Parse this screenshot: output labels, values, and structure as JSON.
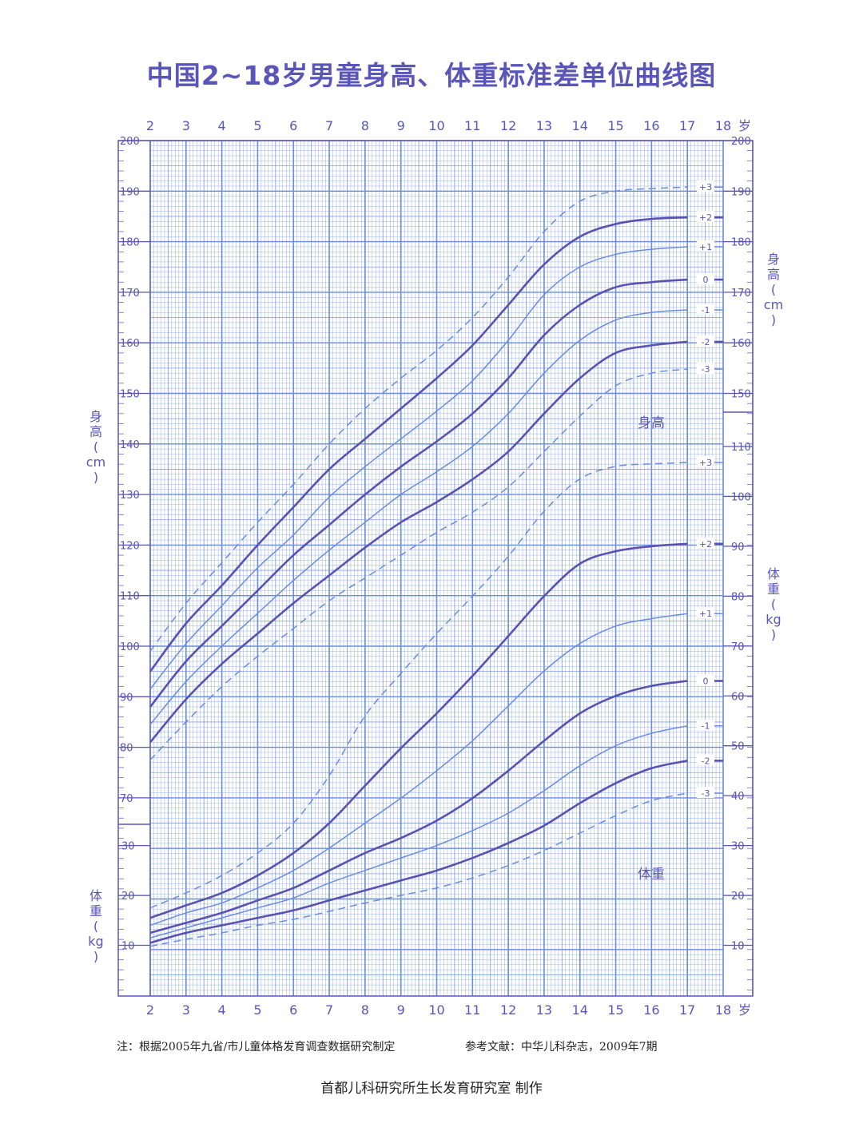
{
  "title": "中国2~18岁男童身高、体重标准差单位曲线图",
  "footer": {
    "note": "注：根据2005年九省/市儿童体格发育调查数据研究制定",
    "reference": "参考文献：中华儿科杂志，2009年7期",
    "maker": "首都儿科研究所生长发育研究室  制作"
  },
  "colors": {
    "grid": "#6a8de0",
    "frame": "#5a55b8",
    "curve_bold": "#5a52b0",
    "curve_thin": "#6a8de0",
    "text": "#5a55b8"
  },
  "chart_data": [
    {
      "type": "line",
      "name_label": "身高",
      "x_label": "岁",
      "y_label_left": [
        "身",
        "高",
        "(",
        "cm",
        ")"
      ],
      "y_label_right": [
        "身",
        "高",
        "(",
        "cm",
        ")"
      ],
      "xlim": [
        2,
        18
      ],
      "x_ticks": [
        2,
        3,
        4,
        5,
        6,
        7,
        8,
        9,
        10,
        11,
        12,
        13,
        14,
        15,
        16,
        17,
        18
      ],
      "x_tick_labels": [
        "2",
        "3",
        "4",
        "5",
        "6",
        "7",
        "8",
        "9",
        "10",
        "11",
        "12",
        "13",
        "14",
        "15",
        "16",
        "17",
        "18"
      ],
      "left_y_ticks": [
        70,
        80,
        90,
        100,
        110,
        120,
        130,
        140,
        150,
        160,
        170,
        180,
        190,
        200
      ],
      "right_y_ticks": [
        150,
        160,
        170,
        180,
        190,
        200
      ],
      "unit": "cm",
      "x": [
        2,
        3,
        4,
        5,
        6,
        7,
        8,
        9,
        10,
        11,
        12,
        13,
        14,
        15,
        16,
        17
      ],
      "series": [
        {
          "name": "+3",
          "style": "dashed",
          "values": [
            99,
            108.5,
            116.5,
            124.5,
            132,
            140,
            147,
            153,
            158.5,
            165,
            173,
            182,
            188,
            190,
            190.5,
            190.8
          ]
        },
        {
          "name": "+2",
          "style": "bold",
          "values": [
            95,
            104.5,
            112,
            120,
            127.5,
            135,
            141,
            147,
            153,
            159.5,
            167.5,
            175.5,
            181,
            183.5,
            184.5,
            184.8
          ]
        },
        {
          "name": "+1",
          "style": "thin",
          "values": [
            91.5,
            100.5,
            108,
            115.5,
            122,
            129.5,
            135.5,
            141,
            146.5,
            152.5,
            160.5,
            169.5,
            175,
            177.5,
            178.5,
            179
          ]
        },
        {
          "name": "0",
          "style": "bold",
          "values": [
            88,
            97,
            104,
            111,
            118,
            124,
            130,
            135.5,
            140.5,
            146,
            153,
            161.5,
            167.5,
            171,
            172,
            172.5
          ]
        },
        {
          "name": "-1",
          "style": "thin",
          "values": [
            84.5,
            93,
            100,
            106.5,
            113,
            119,
            124.5,
            130,
            134.5,
            139.5,
            146,
            154,
            160.5,
            164.5,
            166,
            166.5
          ]
        },
        {
          "name": "-2",
          "style": "bold",
          "values": [
            81,
            89.5,
            96.5,
            102.5,
            108.5,
            114,
            119.5,
            124.5,
            128.5,
            133,
            138.5,
            146,
            153,
            158,
            159.5,
            160.2
          ]
        },
        {
          "name": "-3",
          "style": "dashed",
          "values": [
            77.5,
            85,
            92,
            98,
            103.5,
            109,
            113.5,
            118,
            122.5,
            126.5,
            131.5,
            138.5,
            145.5,
            151.5,
            154,
            154.8
          ]
        }
      ]
    },
    {
      "type": "line",
      "name_label": "体重",
      "x_label": "岁",
      "y_label_left": [
        "体",
        "重",
        "(",
        "kg",
        ")"
      ],
      "y_label_right": [
        "体",
        "重",
        "(",
        "kg",
        ")"
      ],
      "xlim": [
        2,
        18
      ],
      "left_y_ticks": [
        10,
        20,
        30
      ],
      "right_y_ticks": [
        10,
        20,
        30,
        40,
        50,
        60,
        70,
        80,
        90,
        100,
        110
      ],
      "unit": "kg",
      "x": [
        2,
        3,
        4,
        5,
        6,
        7,
        8,
        9,
        10,
        11,
        12,
        13,
        14,
        15,
        16,
        17
      ],
      "series": [
        {
          "name": "+3",
          "style": "dashed",
          "values": [
            17.5,
            20.5,
            24,
            28.5,
            34.5,
            44,
            56,
            64.5,
            72.5,
            80,
            88,
            97,
            103.5,
            106,
            106.5,
            106.8
          ]
        },
        {
          "name": "+2",
          "style": "bold",
          "values": [
            15.5,
            18,
            20.5,
            24,
            28.5,
            34.5,
            42,
            49.5,
            56.5,
            64,
            72,
            80,
            86.5,
            89,
            90,
            90.5
          ]
        },
        {
          "name": "+1",
          "style": "thin",
          "values": [
            14,
            16.5,
            18.5,
            21.5,
            25,
            29.5,
            34.5,
            39.5,
            45,
            51,
            58,
            65,
            70.5,
            74,
            75.5,
            76.5
          ]
        },
        {
          "name": "0",
          "style": "bold",
          "values": [
            12.5,
            14.5,
            16.5,
            19,
            21.5,
            25,
            28.5,
            31.5,
            35,
            39.5,
            45,
            51,
            56.5,
            60,
            62,
            63
          ]
        },
        {
          "name": "-1",
          "style": "thin",
          "values": [
            11.5,
            13.5,
            15.5,
            17.5,
            19.5,
            22.5,
            25,
            27.5,
            30,
            33,
            36.5,
            41,
            46,
            50,
            52.5,
            54
          ]
        },
        {
          "name": "-2",
          "style": "bold",
          "values": [
            10.5,
            12.5,
            14,
            15.5,
            17,
            19,
            21,
            23,
            25,
            27.5,
            30.5,
            34,
            38.5,
            42.5,
            45.5,
            47
          ]
        },
        {
          "name": "-3",
          "style": "dashed",
          "values": [
            9.8,
            11.2,
            12.5,
            14,
            15.2,
            16.8,
            18.5,
            20,
            21.5,
            23.5,
            26,
            29,
            32.5,
            36,
            39,
            40.5
          ]
        }
      ]
    }
  ]
}
